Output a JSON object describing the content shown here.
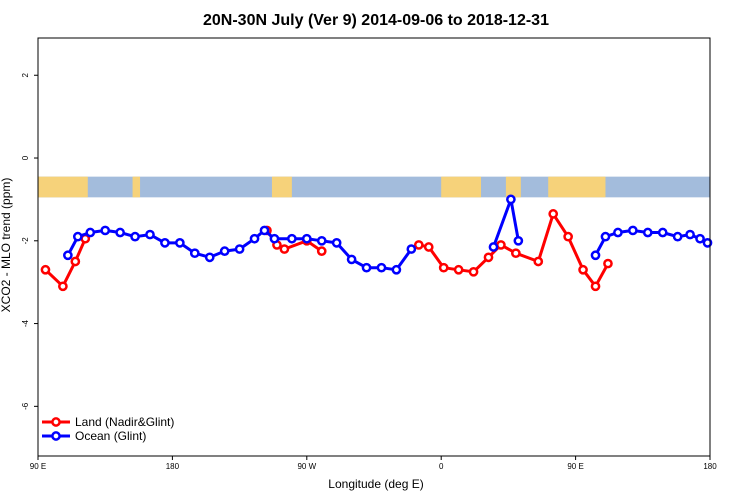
{
  "chart_data": {
    "type": "line",
    "title": "20N-30N July (Ver 9)   2014-09-06 to 2018-12-31",
    "xlabel": "Longitude (deg E)",
    "ylabel": "XCO2 - MLO trend (ppm)",
    "xlim": [
      -90,
      180
    ],
    "ylim": [
      -7.2,
      2.9
    ],
    "x_ticks": [
      {
        "value": -90,
        "label": "90 E"
      },
      {
        "value": -36,
        "label": "180"
      },
      {
        "value": 18,
        "label": "90 W"
      },
      {
        "value": 72,
        "label": "0"
      },
      {
        "value": 126,
        "label": "90 E"
      },
      {
        "value": 180,
        "label": "180"
      }
    ],
    "y_ticks": [
      {
        "value": 2,
        "label": "2"
      },
      {
        "value": 0,
        "label": "0"
      },
      {
        "value": -2,
        "label": "-2"
      },
      {
        "value": -4,
        "label": "-4"
      },
      {
        "value": -6,
        "label": "-6"
      }
    ],
    "map_strip": {
      "y_range": [
        -0.45,
        -0.95
      ],
      "ocean_color": "#a3bcdc",
      "land_color": "#f6d27a",
      "land_segments": [
        [
          -90,
          -70
        ],
        [
          -52,
          -49
        ],
        [
          4,
          12
        ],
        [
          72,
          88
        ],
        [
          98,
          104
        ],
        [
          115,
          138
        ]
      ]
    },
    "legend_position": "bottom-left",
    "series": [
      {
        "name": "Land (Nadir&Glint)",
        "color": "#ff0000",
        "segments": [
          {
            "x": [
              -87,
              -80,
              -75,
              -71
            ],
            "y": [
              -2.7,
              -3.1,
              -2.5,
              -1.95
            ]
          },
          {
            "x": [
              2,
              6,
              9,
              18,
              24
            ],
            "y": [
              -1.75,
              -2.1,
              -2.2,
              -2.0,
              -2.25
            ]
          },
          {
            "x": [
              63,
              67,
              73,
              79,
              85,
              91,
              96,
              102,
              111,
              117,
              123,
              129,
              134,
              139
            ],
            "y": [
              -2.1,
              -2.15,
              -2.65,
              -2.7,
              -2.75,
              -2.4,
              -2.1,
              -2.3,
              -2.5,
              -1.35,
              -1.9,
              -2.7,
              -3.1,
              -2.55
            ]
          }
        ]
      },
      {
        "name": "Ocean (Glint)",
        "color": "#0000ff",
        "segments": [
          {
            "x": [
              -78,
              -74,
              -69,
              -63,
              -57,
              -51,
              -45,
              -39,
              -33,
              -27,
              -21,
              -15,
              -9,
              -3,
              1,
              5,
              12,
              18,
              24,
              30,
              36,
              42,
              48,
              54,
              60
            ],
            "y": [
              -2.35,
              -1.9,
              -1.8,
              -1.75,
              -1.8,
              -1.9,
              -1.85,
              -2.05,
              -2.05,
              -2.3,
              -2.4,
              -2.25,
              -2.2,
              -1.95,
              -1.75,
              -1.95,
              -1.95,
              -1.95,
              -2.0,
              -2.05,
              -2.45,
              -2.65,
              -2.65,
              -2.7,
              -2.2
            ]
          },
          {
            "x": [
              93,
              100,
              103
            ],
            "y": [
              -2.15,
              -1.0,
              -2.0
            ]
          },
          {
            "x": [
              134,
              138,
              143,
              149,
              155,
              161,
              167,
              172,
              176,
              179
            ],
            "y": [
              -2.35,
              -1.9,
              -1.8,
              -1.75,
              -1.8,
              -1.8,
              -1.9,
              -1.85,
              -1.95,
              -2.05
            ]
          }
        ]
      }
    ]
  }
}
